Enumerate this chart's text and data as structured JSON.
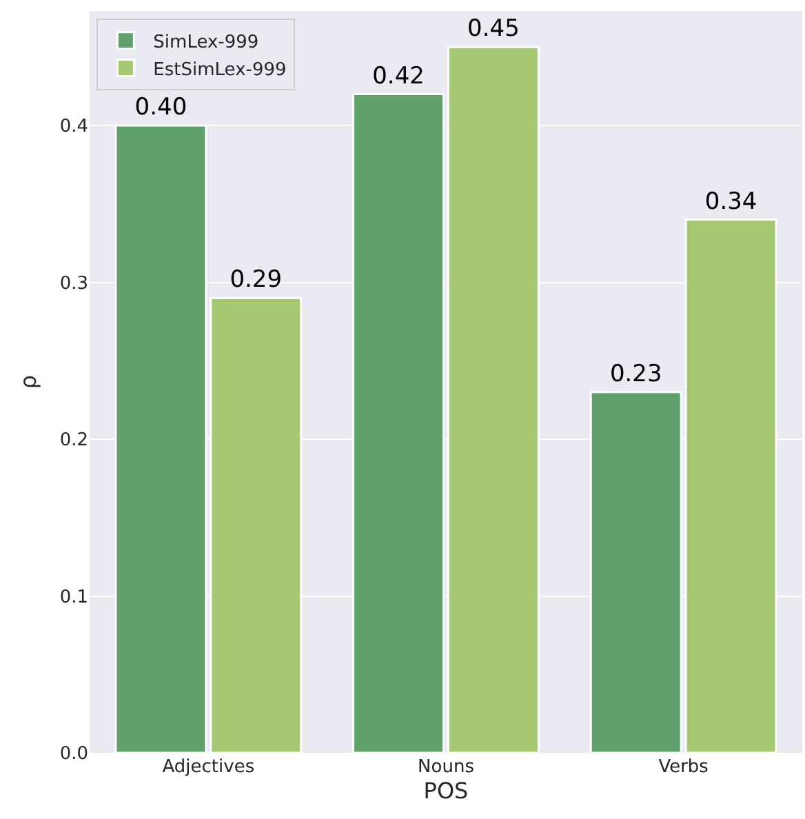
{
  "chart_data": {
    "type": "bar",
    "xlabel": "POS",
    "ylabel": "ρ",
    "categories": [
      "Adjectives",
      "Nouns",
      "Verbs"
    ],
    "series": [
      {
        "name": "SimLex-999",
        "color": "#60a06b",
        "values": [
          0.4,
          0.42,
          0.23
        ],
        "value_labels": [
          "0.40",
          "0.42",
          "0.23"
        ]
      },
      {
        "name": "EstSimLex-999",
        "color": "#a6c872",
        "values": [
          0.29,
          0.45,
          0.34
        ],
        "value_labels": [
          "0.29",
          "0.45",
          "0.34"
        ]
      }
    ],
    "ylim": [
      0,
      0.473
    ],
    "yticks": [
      {
        "value": 0,
        "label": "0.0"
      },
      0.1,
      0.2,
      0.3,
      0.4
    ],
    "grid": "y",
    "legend": "top left"
  }
}
